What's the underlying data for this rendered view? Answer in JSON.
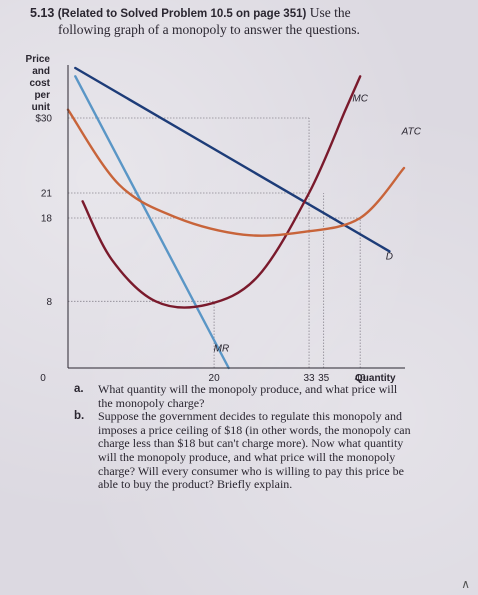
{
  "problem": {
    "number": "5.13",
    "tag": "(Related to Solved Problem 10.5 on page 351)",
    "intro_line1": "Use the",
    "intro_line2": "following graph of a monopoly to answer the questions."
  },
  "chart_data": {
    "type": "line",
    "ylabel": [
      "Price",
      "and",
      "cost",
      "per",
      "unit"
    ],
    "xlabel": "Quantity",
    "x_ticks": [
      {
        "value": 0,
        "label": "0"
      },
      {
        "value": 20,
        "label": "20"
      },
      {
        "value": 33,
        "label": "33"
      },
      {
        "value": 35,
        "label": "35"
      },
      {
        "value": 40,
        "label": "40"
      }
    ],
    "y_ticks": [
      {
        "value": 30,
        "label": "$30"
      },
      {
        "value": 21,
        "label": "21"
      },
      {
        "value": 18,
        "label": "18"
      },
      {
        "value": 8,
        "label": "8"
      }
    ],
    "xlim": [
      0,
      46
    ],
    "ylim": [
      0,
      36
    ],
    "guide_lines": [
      {
        "from": [
          0,
          30
        ],
        "to": [
          33,
          30
        ]
      },
      {
        "from": [
          0,
          21
        ],
        "to": [
          33,
          21
        ]
      },
      {
        "from": [
          0,
          18
        ],
        "to": [
          40,
          18
        ]
      },
      {
        "from": [
          0,
          8
        ],
        "to": [
          20,
          8
        ]
      },
      {
        "from": [
          20,
          0
        ],
        "to": [
          20,
          8
        ]
      },
      {
        "from": [
          33,
          0
        ],
        "to": [
          33,
          30
        ]
      },
      {
        "from": [
          35,
          0
        ],
        "to": [
          35,
          21
        ]
      },
      {
        "from": [
          40,
          0
        ],
        "to": [
          40,
          18
        ]
      }
    ],
    "series": [
      {
        "name": "D",
        "color": "#1d3c78",
        "points": [
          [
            1,
            36
          ],
          [
            44,
            14
          ]
        ],
        "label_at": [
          44,
          13
        ]
      },
      {
        "name": "MR",
        "color": "#5a96c6",
        "points": [
          [
            1,
            35
          ],
          [
            22,
            0
          ]
        ],
        "label_at": [
          21,
          2
        ]
      },
      {
        "name": "MC",
        "color": "#7a1a2c",
        "points": [
          [
            2,
            20
          ],
          [
            6,
            13
          ],
          [
            12,
            8
          ],
          [
            19,
            7.6
          ],
          [
            26,
            11
          ],
          [
            33,
            21
          ],
          [
            38,
            31
          ],
          [
            40,
            35
          ]
        ],
        "label_at": [
          40,
          32
        ]
      },
      {
        "name": "ATC",
        "color": "#c8643a",
        "points": [
          [
            0,
            31
          ],
          [
            7,
            22
          ],
          [
            15,
            18
          ],
          [
            24,
            16
          ],
          [
            32,
            16.3
          ],
          [
            40,
            18
          ],
          [
            46,
            24
          ]
        ],
        "label_at": [
          47,
          28
        ]
      }
    ]
  },
  "questions": [
    {
      "letter": "a.",
      "text": "What quantity will the monopoly produce, and what price will the monopoly charge?"
    },
    {
      "letter": "b.",
      "text": "Suppose the government decides to regulate this monopoly and imposes a price ceiling of $18 (in other words, the monopoly can charge less than $18 but can't charge more). Now what quantity will the monopoly produce, and what price will the monopoly charge? Will every consumer who is willing to pay this price be able to buy the product? Briefly explain."
    }
  ]
}
